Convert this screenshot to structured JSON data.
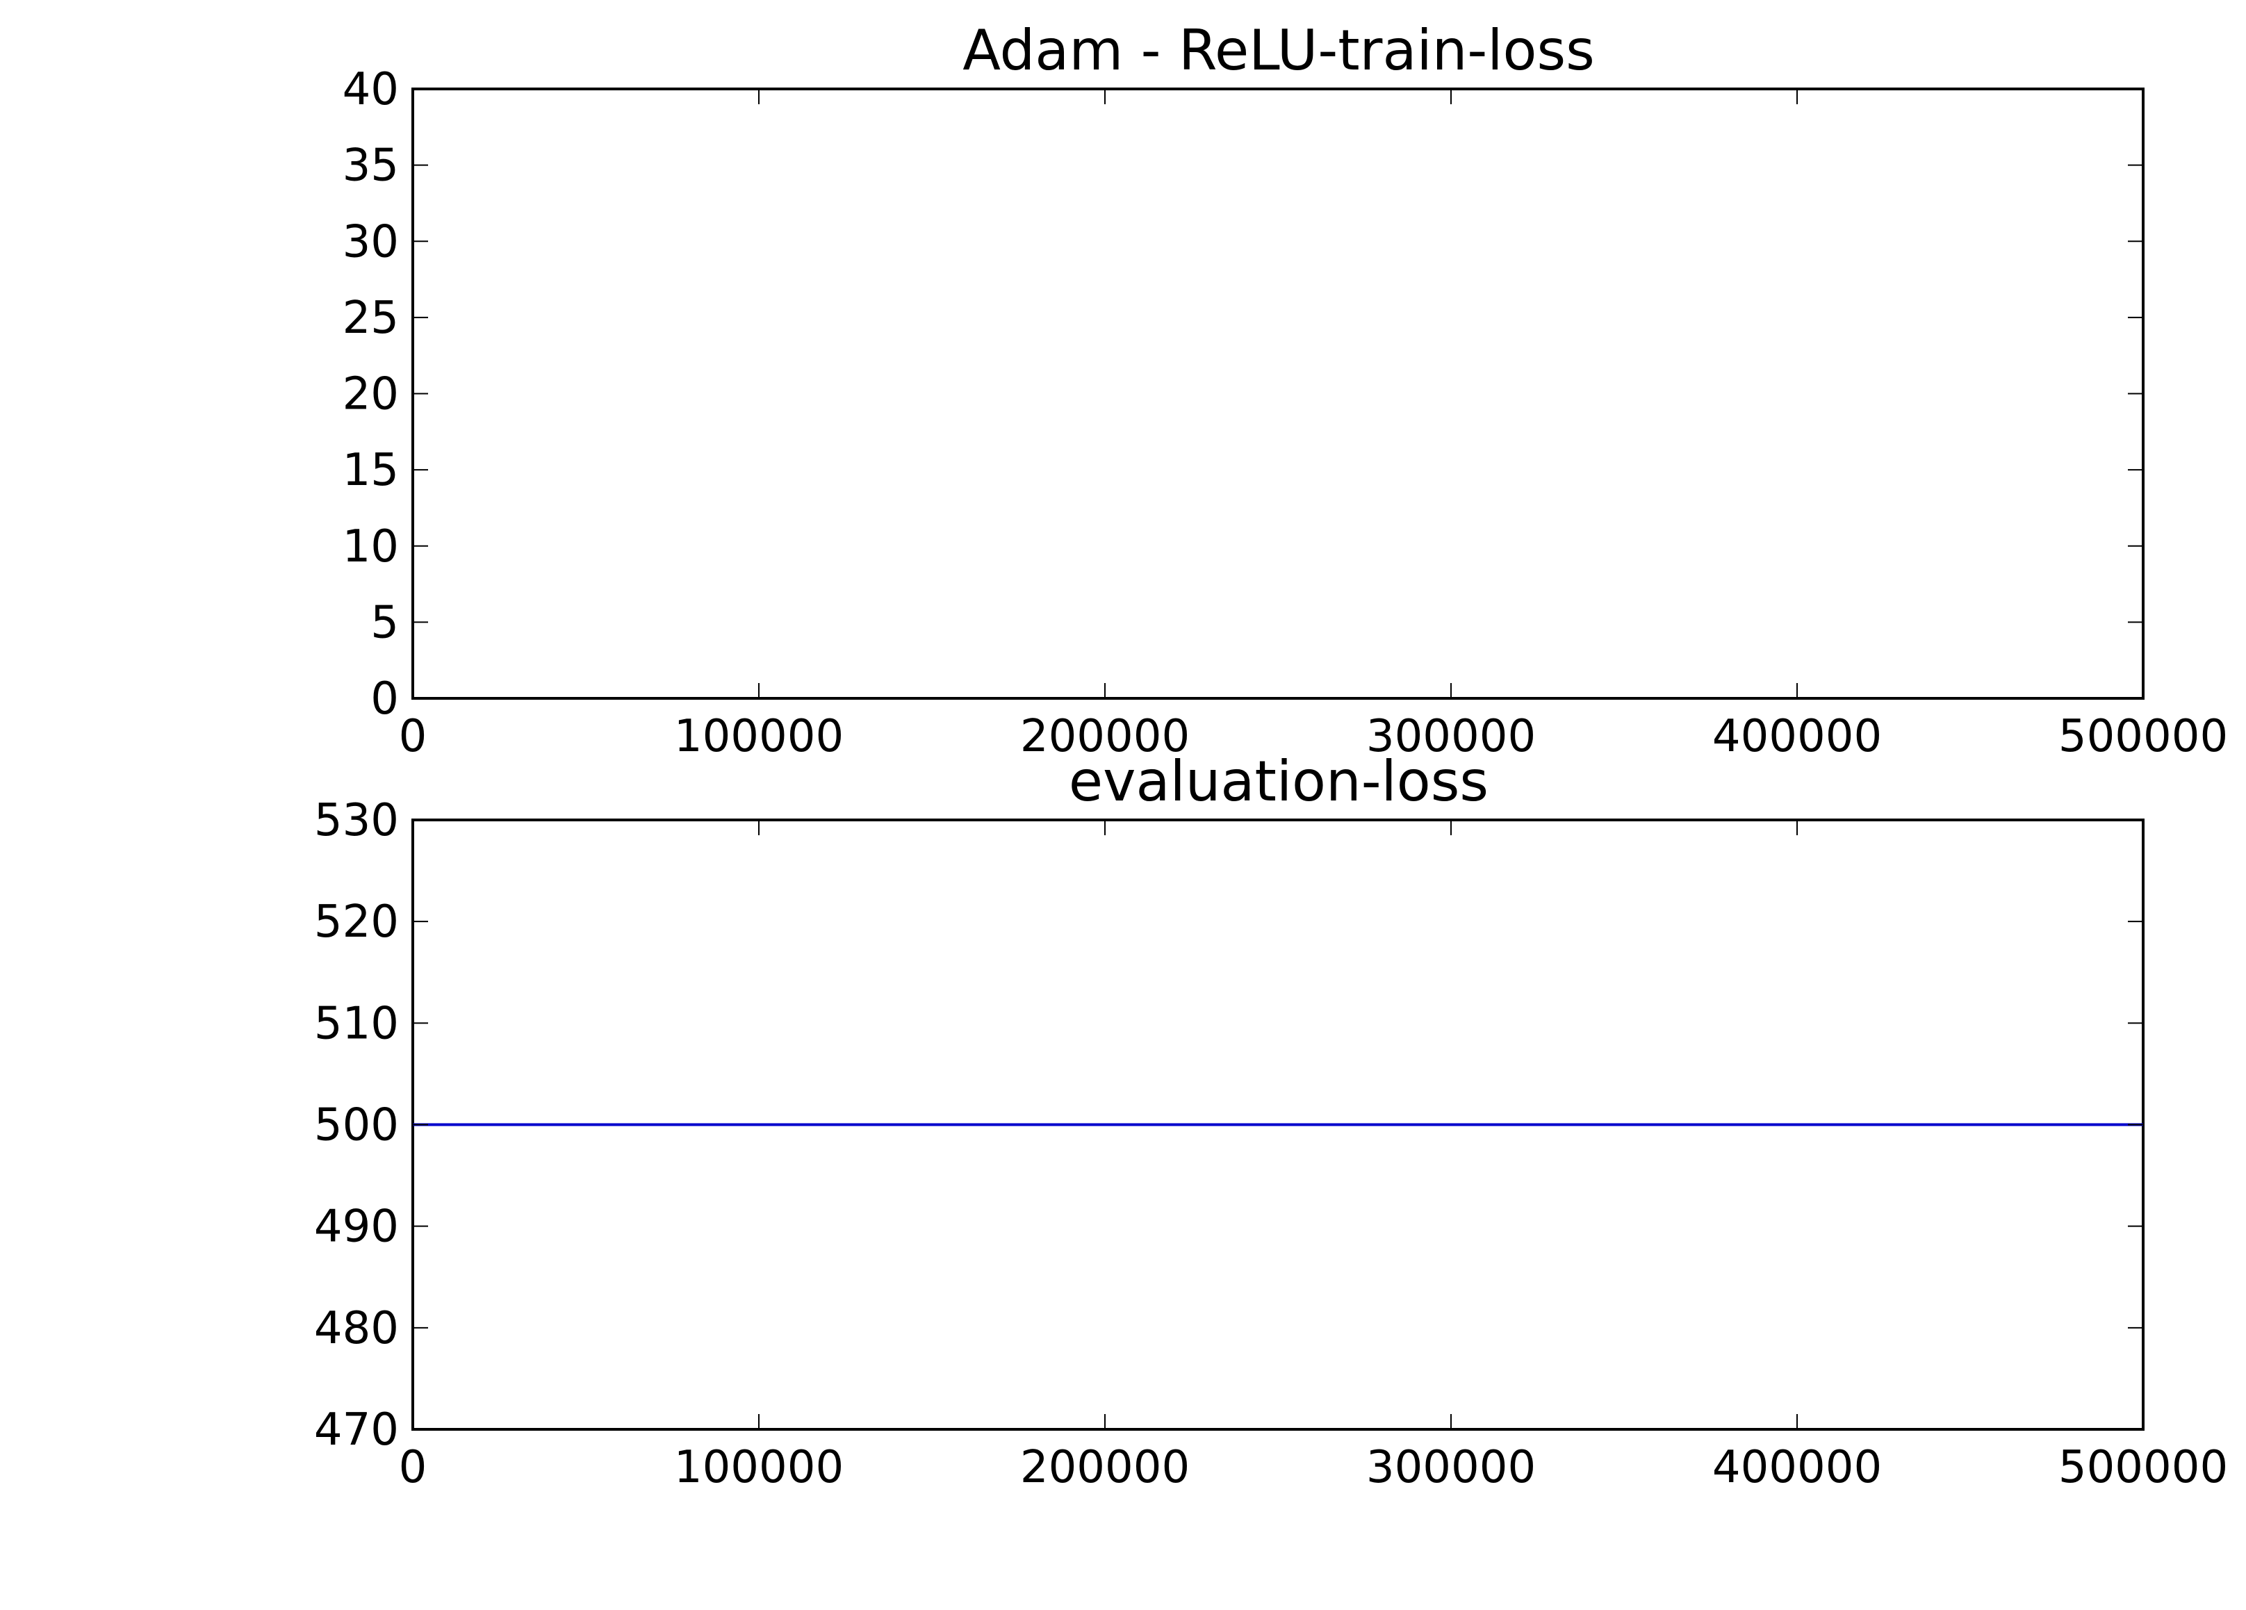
{
  "chart_data": [
    {
      "type": "line",
      "title": "Adam - ReLU-train-loss",
      "xlabel": "",
      "ylabel": "",
      "xlim": [
        0,
        500000
      ],
      "ylim": [
        0,
        40
      ],
      "xticks": [
        0,
        100000,
        200000,
        300000,
        400000,
        500000
      ],
      "xtick_labels": [
        "0",
        "100000",
        "200000",
        "300000",
        "400000",
        "500000"
      ],
      "yticks": [
        0,
        5,
        10,
        15,
        20,
        25,
        30,
        35,
        40
      ],
      "ytick_labels": [
        "0",
        "5",
        "10",
        "15",
        "20",
        "25",
        "30",
        "35",
        "40"
      ],
      "grid": false,
      "series": []
    },
    {
      "type": "line",
      "title": "evaluation-loss",
      "xlabel": "",
      "ylabel": "",
      "xlim": [
        0,
        500000
      ],
      "ylim": [
        470,
        530
      ],
      "xticks": [
        0,
        100000,
        200000,
        300000,
        400000,
        500000
      ],
      "xtick_labels": [
        "0",
        "100000",
        "200000",
        "300000",
        "400000",
        "500000"
      ],
      "yticks": [
        470,
        480,
        490,
        500,
        510,
        520,
        530
      ],
      "ytick_labels": [
        "470",
        "480",
        "490",
        "500",
        "510",
        "520",
        "530"
      ],
      "grid": false,
      "series": [
        {
          "color": "#0000cc",
          "x": [
            0,
            500000
          ],
          "y": [
            500,
            500
          ]
        }
      ]
    }
  ]
}
